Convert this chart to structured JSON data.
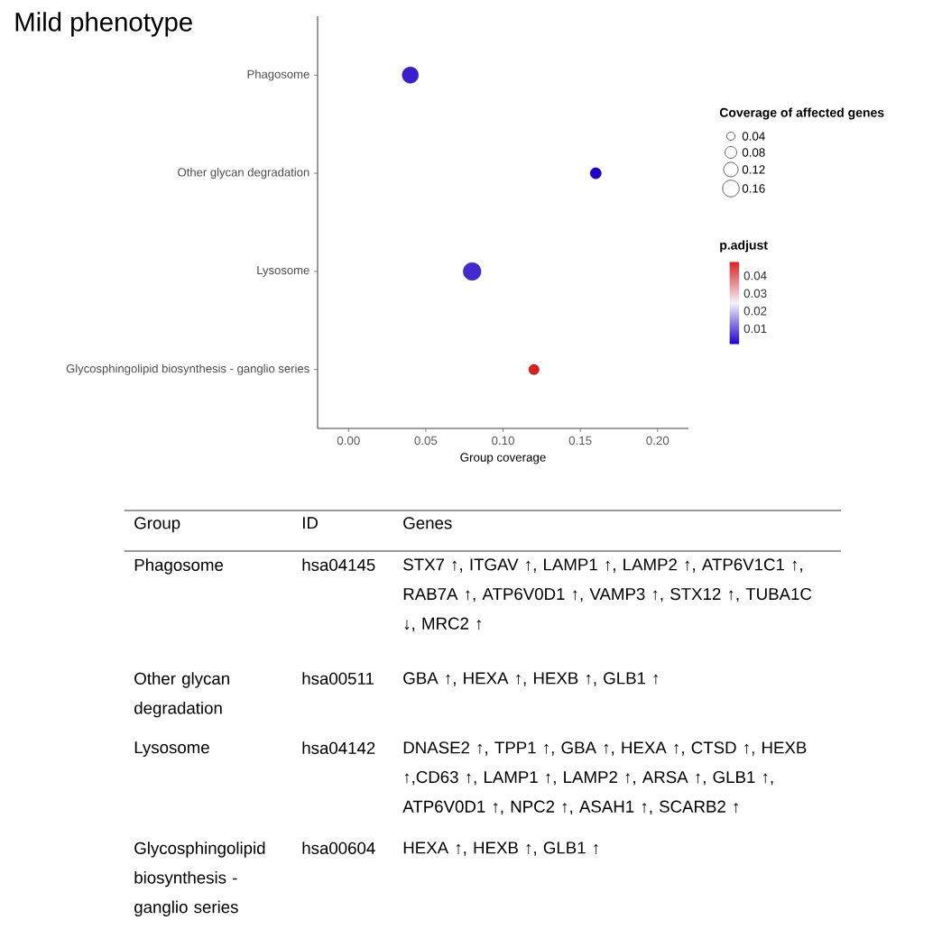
{
  "chart_data": {
    "type": "bubble",
    "title": "Mild phenotype",
    "xlabel": "Group coverage",
    "orientation": "horizontal",
    "categories": [
      "Phagosome",
      "Other glycan degradation",
      "Lysosome",
      "Glycosphingolipid biosynthesis - ganglio series"
    ],
    "values": [
      0.04,
      0.16,
      0.08,
      0.12
    ],
    "sizes": [
      0.15,
      0.07,
      0.18,
      0.06
    ],
    "size_legend": [
      0.04,
      0.08,
      0.12,
      0.16
    ],
    "legend_title": "Coverage of affected genes",
    "cvalues": [
      0.004,
      0.001,
      0.005,
      0.048
    ],
    "clim": [
      0.001,
      0.048
    ],
    "cticks": [
      0.01,
      0.02,
      0.03,
      0.04
    ],
    "clabel": "p.adjust",
    "xlim": [
      -0.02,
      0.22
    ],
    "xticks": [
      {
        "value": 0,
        "label": "0.00"
      },
      0.05,
      {
        "value": 0.1,
        "label": "0.10"
      },
      0.15,
      {
        "value": 0.2,
        "label": "0.20"
      }
    ],
    "annotations": [
      "Group",
      "ID",
      "Genes",
      "Phagosome",
      "hsa04145",
      "STX7 ↑, ITGAV ↑, LAMP1 ↑, LAMP2 ↑, ATP6V1C1 ↑, RAB7A ↑, ATP6V0D1 ↑, VAMP3 ↑, STX12 ↑, TUBA1C ↓, MRC2 ↑",
      "Other glycan degradation",
      "hsa00511",
      "GBA ↑, HEXA ↑, HEXB ↑, GLB1 ↑",
      "Lysosome",
      "hsa04142",
      "DNASE2 ↑, TPP1 ↑, GBA ↑, HEXA ↑, CTSD ↑, HEXB ↑,CD63 ↑, LAMP1 ↑, LAMP2 ↑, ARSA ↑, GLB1 ↑, ATP6V0D1 ↑, NPC2 ↑, ASAH1 ↑, SCARB2 ↑",
      "Glycosphingolipid biosynthesis - ganglio series",
      "hsa00604",
      "HEXA ↑, HEXB ↑, GLB1 ↑"
    ]
  }
}
